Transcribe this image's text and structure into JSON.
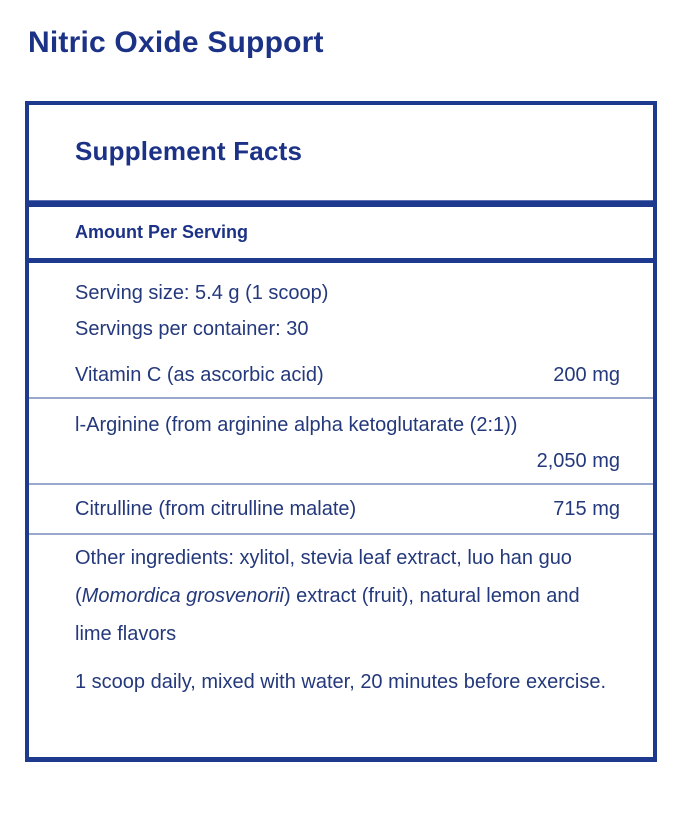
{
  "page": {
    "title": "Nitric Oxide Support"
  },
  "label": {
    "header": "Supplement Facts",
    "amount_per_serving": "Amount Per Serving",
    "serving_size": "Serving size: 5.4 g (1 scoop)",
    "servings_per_container": "Servings per container: 30",
    "nutrients": [
      {
        "name": "Vitamin C (as ascorbic acid)",
        "amount": "200 mg"
      },
      {
        "name": "l-Arginine (from arginine alpha ketoglutarate (2:1))",
        "amount": "2,050 mg"
      },
      {
        "name": "Citrulline (from citrulline malate)",
        "amount": "715 mg"
      }
    ],
    "other_ingredients": {
      "before_italic": "Other ingredients: xylitol, stevia leaf extract, luo han guo (",
      "italic": "Momordica grosvenorii",
      "after_italic": ") extract (fruit), natural lemon and lime flavors"
    },
    "directions": "1 scoop daily, mixed with water, 20 minutes before exercise."
  },
  "colors": {
    "brand_navy": "#1c3286",
    "rule_navy": "#1e3a8f",
    "body_text": "#24397b",
    "thin_divider": "#9aa8ce"
  }
}
